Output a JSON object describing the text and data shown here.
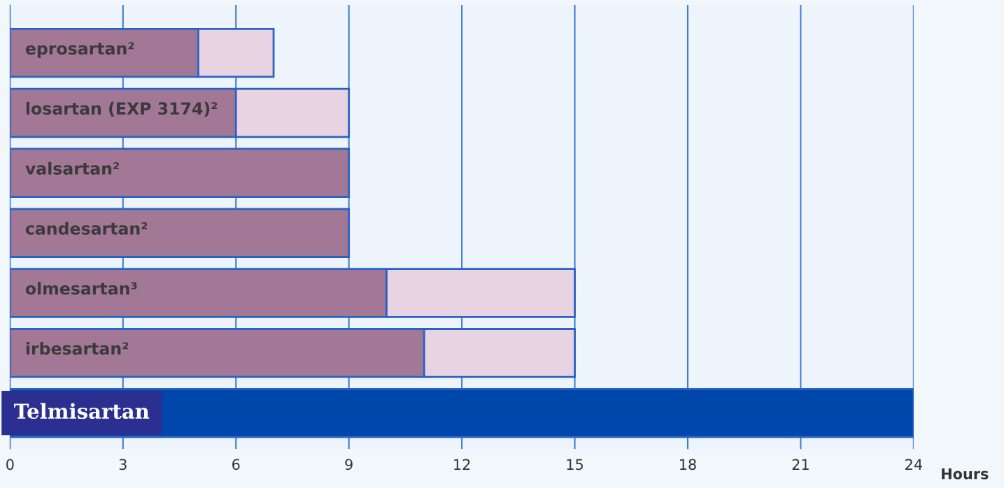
{
  "chart_data": {
    "type": "bar",
    "orientation": "horizontal",
    "stacked": true,
    "categories": [
      "eprosartan²",
      "losartan (EXP 3174)²",
      "valsartan²",
      "candesartan²",
      "olmesartan³",
      "irbesartan²",
      "Telmisartan"
    ],
    "series": [
      {
        "color": "#a27896",
        "colors": [
          "#a27896",
          "#a27896",
          "#a27896",
          "#a27896",
          "#a27896",
          "#a27896",
          "#0047ab"
        ],
        "values": [
          5,
          6,
          9,
          9,
          10,
          11,
          24
        ]
      },
      {
        "color": "#e8d3e2",
        "values": [
          2,
          3,
          null,
          null,
          5,
          4,
          null
        ]
      }
    ],
    "xlabel": "Hours",
    "xlim": [
      0,
      24
    ],
    "xticks": [
      0,
      3,
      6,
      9,
      12,
      15,
      18,
      21,
      24
    ],
    "grid": "x",
    "tick_labels": "x"
  }
}
